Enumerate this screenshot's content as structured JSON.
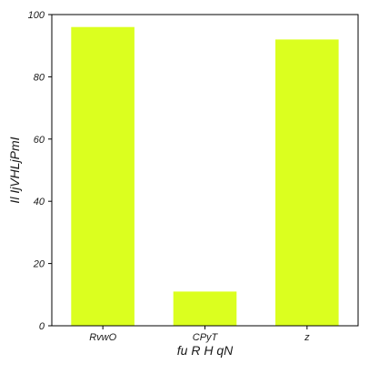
{
  "chart_data": {
    "type": "bar",
    "categories": [
      "RvwO",
      "CPyT",
      "z"
    ],
    "values": [
      96,
      11,
      92
    ],
    "title": "",
    "xlabel": "fu R  H qN",
    "ylabel": "Il IjVHLjPmI",
    "ylim": [
      0,
      100
    ],
    "yticks": [
      0,
      20,
      40,
      60,
      80,
      100
    ],
    "grid": false,
    "bar_color": "#dbff1f",
    "axis_color": "#000000"
  }
}
